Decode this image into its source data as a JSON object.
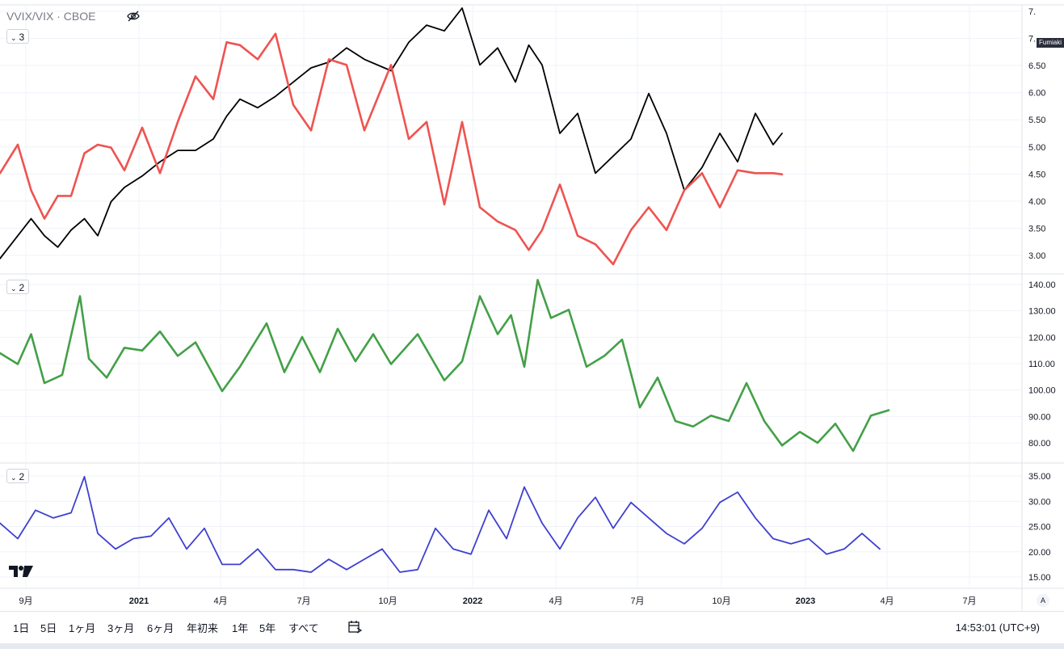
{
  "header": {
    "symbol_title": "VVIX/VIX · CBOE",
    "pane1_badge": "3",
    "pane2_badge": "2",
    "pane3_badge": "2",
    "price_tag": "Fumiaki"
  },
  "toolbar": {
    "ranges": [
      "1日",
      "5日",
      "1ヶ月",
      "3ヶ月",
      "6ヶ月",
      "年初来",
      "1年",
      "5年",
      "すべて"
    ],
    "clock": "14:53:01 (UTC+9)",
    "auto_label": "A"
  },
  "colors": {
    "ratio_black": "#000000",
    "ratio_red": "#ef5350",
    "vvix_green": "#43a047",
    "vix_blue": "#3f3fd1",
    "grid": "#f0f3fa"
  },
  "chart_data": [
    {
      "type": "line",
      "title": "VVIX/VIX · CBOE",
      "x_ticks": [
        "9月",
        "2021",
        "4月",
        "7月",
        "10月",
        "2022",
        "4月",
        "7月",
        "10月",
        "2023",
        "4月",
        "7月"
      ],
      "y_ticks": [
        "7.",
        "7.",
        "6.50",
        "6.00",
        "5.50",
        "5.00",
        "4.50",
        "4.00",
        "3.50",
        "3.00"
      ],
      "ylim": [
        2.9,
        7.5
      ],
      "x": [
        0,
        0.02,
        0.035,
        0.05,
        0.065,
        0.08,
        0.095,
        0.11,
        0.125,
        0.14,
        0.16,
        0.18,
        0.2,
        0.22,
        0.24,
        0.255,
        0.27,
        0.29,
        0.31,
        0.33,
        0.35,
        0.37,
        0.39,
        0.41,
        0.44,
        0.46,
        0.48,
        0.5,
        0.52,
        0.54,
        0.56,
        0.58,
        0.595,
        0.61,
        0.63,
        0.65,
        0.67,
        0.69,
        0.71,
        0.73,
        0.75,
        0.77,
        0.79,
        0.81,
        0.83,
        0.85,
        0.87,
        0.88
      ],
      "series": [
        {
          "values": [
            3.1,
            3.5,
            3.8,
            3.5,
            3.3,
            3.6,
            3.8,
            3.5,
            4.1,
            4.35,
            4.55,
            4.8,
            5.0,
            5.0,
            5.2,
            5.6,
            5.9,
            5.75,
            5.95,
            6.2,
            6.45,
            6.55,
            6.8,
            6.6,
            6.4,
            6.9,
            7.2,
            7.1,
            7.5,
            6.5,
            6.8,
            6.2,
            6.85,
            6.5,
            5.3,
            5.65,
            4.6,
            4.9,
            5.2,
            6.0,
            5.3,
            4.3,
            4.7,
            5.3,
            4.8,
            5.65,
            5.1,
            5.3
          ]
        },
        {
          "values": [
            4.6,
            5.1,
            4.3,
            3.8,
            4.2,
            4.2,
            4.95,
            5.1,
            5.05,
            4.65,
            5.4,
            4.6,
            5.5,
            6.3,
            5.9,
            6.9,
            6.85,
            6.6,
            7.05,
            5.8,
            5.35,
            6.6,
            6.5,
            5.35,
            6.5,
            5.2,
            5.5,
            4.05,
            5.5,
            4.0,
            3.75,
            3.6,
            3.25,
            3.6,
            4.4,
            3.5,
            3.35,
            3.0,
            3.6,
            4.0,
            3.6,
            4.3,
            4.6,
            4.0,
            4.65,
            4.6,
            4.6,
            4.58
          ]
        }
      ]
    },
    {
      "type": "line",
      "y_ticks": [
        "140.00",
        "130.00",
        "120.00",
        "110.00",
        "100.00",
        "90.00",
        "80.00"
      ],
      "ylim": [
        76,
        143
      ],
      "x": [
        0,
        0.02,
        0.035,
        0.05,
        0.07,
        0.09,
        0.1,
        0.12,
        0.14,
        0.16,
        0.18,
        0.2,
        0.22,
        0.25,
        0.27,
        0.3,
        0.32,
        0.34,
        0.36,
        0.38,
        0.4,
        0.42,
        0.44,
        0.47,
        0.5,
        0.52,
        0.54,
        0.56,
        0.575,
        0.59,
        0.605,
        0.62,
        0.64,
        0.66,
        0.68,
        0.7,
        0.72,
        0.74,
        0.76,
        0.78,
        0.8,
        0.82,
        0.84,
        0.86,
        0.88,
        0.9,
        0.92,
        0.94,
        0.96,
        0.98,
        1.0
      ],
      "series": [
        {
          "values": [
            115,
            111,
            122,
            104,
            107,
            136,
            113,
            106,
            117,
            116,
            123,
            114,
            119,
            101,
            110,
            126,
            108,
            121,
            108,
            124,
            112,
            122,
            111,
            122,
            105,
            112,
            136,
            122,
            129,
            110,
            142,
            128,
            131,
            110,
            114,
            120,
            95,
            106,
            90,
            88,
            92,
            90,
            104,
            90,
            81,
            86,
            82,
            89,
            79,
            92,
            94
          ]
        }
      ]
    },
    {
      "type": "line",
      "y_ticks": [
        "35.00",
        "30.00",
        "25.00",
        "20.00",
        "15.00"
      ],
      "ylim": [
        14,
        37
      ],
      "x": [
        0,
        0.02,
        0.04,
        0.06,
        0.08,
        0.095,
        0.11,
        0.13,
        0.15,
        0.17,
        0.19,
        0.21,
        0.23,
        0.25,
        0.27,
        0.29,
        0.31,
        0.33,
        0.35,
        0.37,
        0.39,
        0.41,
        0.43,
        0.45,
        0.47,
        0.49,
        0.51,
        0.53,
        0.55,
        0.57,
        0.59,
        0.61,
        0.63,
        0.65,
        0.67,
        0.69,
        0.71,
        0.73,
        0.75,
        0.77,
        0.79,
        0.81,
        0.83,
        0.85,
        0.87,
        0.89,
        0.91,
        0.93,
        0.95,
        0.97,
        0.99
      ],
      "series": [
        {
          "values": [
            26,
            23,
            28.5,
            27,
            28,
            35,
            24,
            21,
            23,
            23.5,
            27,
            21,
            25,
            18,
            18,
            21,
            17,
            17,
            16.5,
            19,
            17,
            19,
            21,
            16.5,
            17,
            25,
            21,
            20,
            28.5,
            23,
            33,
            26,
            21,
            27,
            31,
            25,
            30,
            27,
            24,
            22,
            25,
            30,
            32,
            27,
            23,
            22,
            23,
            20,
            21,
            24,
            21
          ]
        }
      ]
    }
  ]
}
